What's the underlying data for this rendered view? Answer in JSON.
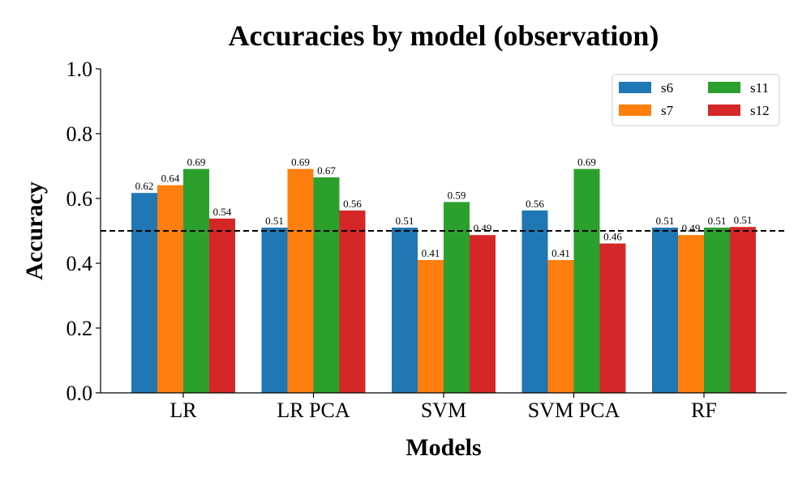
{
  "chart_data": {
    "type": "bar",
    "title": "Accuracies by model (observation)",
    "xlabel": "Models",
    "ylabel": "Accuracy",
    "categories": [
      "LR",
      "LR PCA",
      "SVM",
      "SVM PCA",
      "RF"
    ],
    "series": [
      {
        "name": "s6",
        "color": "#1f77b4",
        "values": [
          0.617,
          0.51,
          0.51,
          0.563,
          0.51
        ],
        "labels": [
          "0.62",
          "0.51",
          "0.51",
          "0.56",
          "0.51"
        ]
      },
      {
        "name": "s7",
        "color": "#ff7f0e",
        "values": [
          0.641,
          0.691,
          0.41,
          0.41,
          0.487
        ],
        "labels": [
          "0.64",
          "0.69",
          "0.41",
          "0.41",
          "0.49"
        ]
      },
      {
        "name": "s11",
        "color": "#2ca02c",
        "values": [
          0.691,
          0.665,
          0.589,
          0.691,
          0.51
        ],
        "labels": [
          "0.69",
          "0.67",
          "0.59",
          "0.69",
          "0.51"
        ]
      },
      {
        "name": "s12",
        "color": "#d62728",
        "values": [
          0.538,
          0.563,
          0.487,
          0.461,
          0.512
        ],
        "labels": [
          "0.54",
          "0.56",
          "0.49",
          "0.46",
          "0.51"
        ]
      }
    ],
    "ylim": [
      0.0,
      1.0
    ],
    "yticks": [
      "0.0",
      "0.2",
      "0.4",
      "0.6",
      "0.8",
      "1.0"
    ],
    "reference_line": {
      "y": 0.5,
      "style": "dashed",
      "color": "#000000"
    },
    "legend": {
      "placement": "top-right",
      "columns": 2
    },
    "grid": false
  }
}
